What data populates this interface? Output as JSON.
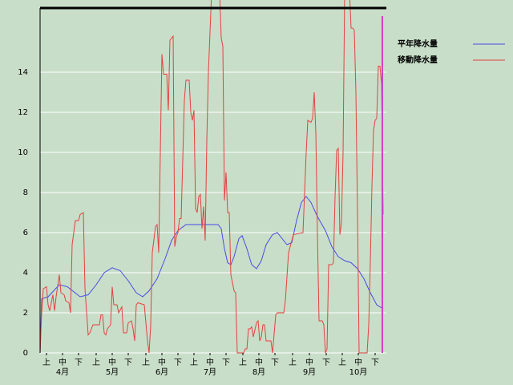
{
  "chart_data": {
    "type": "line",
    "xlim": [
      0,
      215
    ],
    "ylim": [
      0,
      17.2
    ],
    "yticks": [
      0,
      2,
      4,
      6,
      8,
      10,
      12,
      14
    ],
    "grid": true,
    "xticks": [
      {
        "value": 4,
        "label": "上"
      },
      {
        "value": 14,
        "label": "中"
      },
      {
        "value": 24,
        "label": "下"
      },
      {
        "value": 35,
        "label": "上"
      },
      {
        "value": 45,
        "label": "中"
      },
      {
        "value": 55,
        "label": "下"
      },
      {
        "value": 66,
        "label": "上"
      },
      {
        "value": 76,
        "label": "中"
      },
      {
        "value": 86,
        "label": "下"
      },
      {
        "value": 96,
        "label": "上"
      },
      {
        "value": 106,
        "label": "中"
      },
      {
        "value": 116,
        "label": "下"
      },
      {
        "value": 126.5,
        "label": "上"
      },
      {
        "value": 136.5,
        "label": "中"
      },
      {
        "value": 146.5,
        "label": "下"
      },
      {
        "value": 157.5,
        "label": "上"
      },
      {
        "value": 168,
        "label": "中"
      },
      {
        "value": 178.5,
        "label": "下"
      },
      {
        "value": 188.5,
        "label": "上"
      },
      {
        "value": 198.5,
        "label": "中"
      },
      {
        "value": 209,
        "label": "下"
      }
    ],
    "month_ticks": [
      {
        "value": 14,
        "label": "4月"
      },
      {
        "value": 45,
        "label": "5月"
      },
      {
        "value": 76,
        "label": "6月"
      },
      {
        "value": 106,
        "label": "7月"
      },
      {
        "value": 136.5,
        "label": "8月"
      },
      {
        "value": 168,
        "label": "9月"
      },
      {
        "value": 198.5,
        "label": "10月"
      }
    ],
    "marker_x": 213.5,
    "marker_color": "#cc44cc",
    "legend": "top-right",
    "series": [
      {
        "name": "平年降水量",
        "color": "#4a4ae6",
        "x": [
          0,
          1,
          5,
          12,
          17,
          25,
          30,
          35,
          40,
          45,
          50,
          55,
          60,
          64,
          68,
          73,
          78,
          82,
          86,
          91,
          111,
          113,
          115,
          117,
          119,
          121,
          124,
          126,
          129,
          132,
          135,
          138,
          141,
          145,
          148,
          151,
          154,
          157,
          160,
          163,
          166,
          169,
          173,
          178,
          182,
          186,
          190,
          194,
          198,
          202,
          206,
          210,
          214
        ],
        "values": [
          0,
          2.7,
          2.8,
          3.4,
          3.3,
          2.8,
          2.9,
          3.4,
          4.0,
          4.25,
          4.1,
          3.6,
          3.0,
          2.8,
          3.1,
          3.7,
          4.7,
          5.6,
          6.1,
          6.4,
          6.4,
          6.2,
          5.2,
          4.5,
          4.4,
          4.8,
          5.7,
          5.85,
          5.2,
          4.4,
          4.2,
          4.6,
          5.4,
          5.9,
          6.0,
          5.7,
          5.4,
          5.5,
          6.6,
          7.5,
          7.8,
          7.5,
          6.8,
          6.1,
          5.3,
          4.8,
          4.6,
          4.5,
          4.2,
          3.7,
          3.0,
          2.4,
          2.2
        ]
      },
      {
        "name": "移動降水量",
        "color": "#e64040",
        "x": [
          0,
          1,
          2,
          4,
          5,
          6,
          8,
          9,
          10,
          12,
          13,
          15,
          16,
          18,
          19,
          20,
          22,
          24,
          25,
          27,
          28,
          30,
          31,
          33,
          37,
          38,
          39,
          40,
          41,
          42,
          44,
          45,
          46,
          48,
          49,
          51,
          52,
          54,
          55,
          57,
          58,
          59,
          60,
          61,
          65,
          67,
          68,
          69,
          70,
          72,
          73,
          74,
          76,
          77,
          79,
          80,
          81,
          83,
          84,
          85,
          86,
          87,
          88,
          90,
          91,
          93,
          94,
          95,
          96,
          97,
          98,
          99,
          100,
          101,
          102,
          103,
          104,
          105,
          107,
          112,
          113,
          114,
          115,
          116,
          117,
          118,
          119,
          121,
          122,
          123,
          127,
          128,
          129,
          130,
          131,
          132,
          133,
          135,
          136,
          137,
          138,
          139,
          140,
          141,
          144,
          145,
          147,
          148,
          152,
          153,
          155,
          158,
          164,
          166,
          167,
          169,
          170,
          171,
          172,
          173,
          174,
          176,
          177,
          178,
          179,
          180,
          182,
          183,
          184,
          185,
          186,
          187,
          188,
          189,
          190,
          193,
          194,
          195,
          196,
          197,
          198,
          199,
          204,
          205,
          206,
          207,
          208,
          209,
          210,
          211,
          212,
          213,
          214
        ],
        "values": [
          0,
          2.0,
          3.2,
          3.3,
          2.4,
          2.1,
          2.9,
          2.1,
          2.8,
          3.9,
          3.0,
          2.9,
          2.6,
          2.5,
          2.0,
          5.4,
          6.6,
          6.6,
          6.9,
          7.0,
          3.2,
          0.9,
          1.0,
          1.4,
          1.4,
          1.9,
          1.9,
          1.0,
          0.9,
          1.2,
          1.4,
          3.3,
          2.4,
          2.4,
          2.0,
          2.3,
          1.0,
          1.0,
          1.5,
          1.6,
          1.2,
          0.6,
          2.4,
          2.5,
          2.4,
          0.6,
          0,
          1.4,
          5.0,
          6.3,
          6.4,
          5.0,
          14.9,
          13.9,
          13.9,
          12.1,
          15.6,
          15.8,
          5.3,
          5.8,
          6.0,
          6.7,
          6.7,
          12.6,
          13.6,
          13.6,
          12.0,
          11.6,
          12.1,
          7.2,
          7.0,
          7.8,
          7.9,
          6.2,
          7.3,
          5.6,
          10.6,
          14,
          18,
          18,
          15.7,
          15.3,
          7.6,
          9.0,
          7.0,
          7.0,
          3.9,
          3.1,
          3.0,
          0,
          0,
          0.2,
          0.2,
          1.2,
          1.2,
          1.3,
          0.8,
          1.5,
          1.6,
          0.6,
          0.8,
          1.4,
          1.4,
          0.6,
          0.6,
          0,
          1.9,
          2.0,
          2.0,
          2.6,
          5.0,
          5.9,
          6.0,
          10.0,
          11.6,
          11.5,
          11.7,
          13.0,
          11.0,
          6.0,
          1.6,
          1.6,
          1.4,
          0,
          0.2,
          4.4,
          4.4,
          4.5,
          7.8,
          10.1,
          10.2,
          5.9,
          6.5,
          10.0,
          18,
          18,
          16.2,
          16.2,
          16.1,
          13.0,
          7.0,
          0,
          0,
          1.4,
          4.5,
          8.3,
          11.1,
          11.6,
          11.7,
          14.3,
          14.3,
          13.4,
          6.9
        ]
      }
    ]
  }
}
